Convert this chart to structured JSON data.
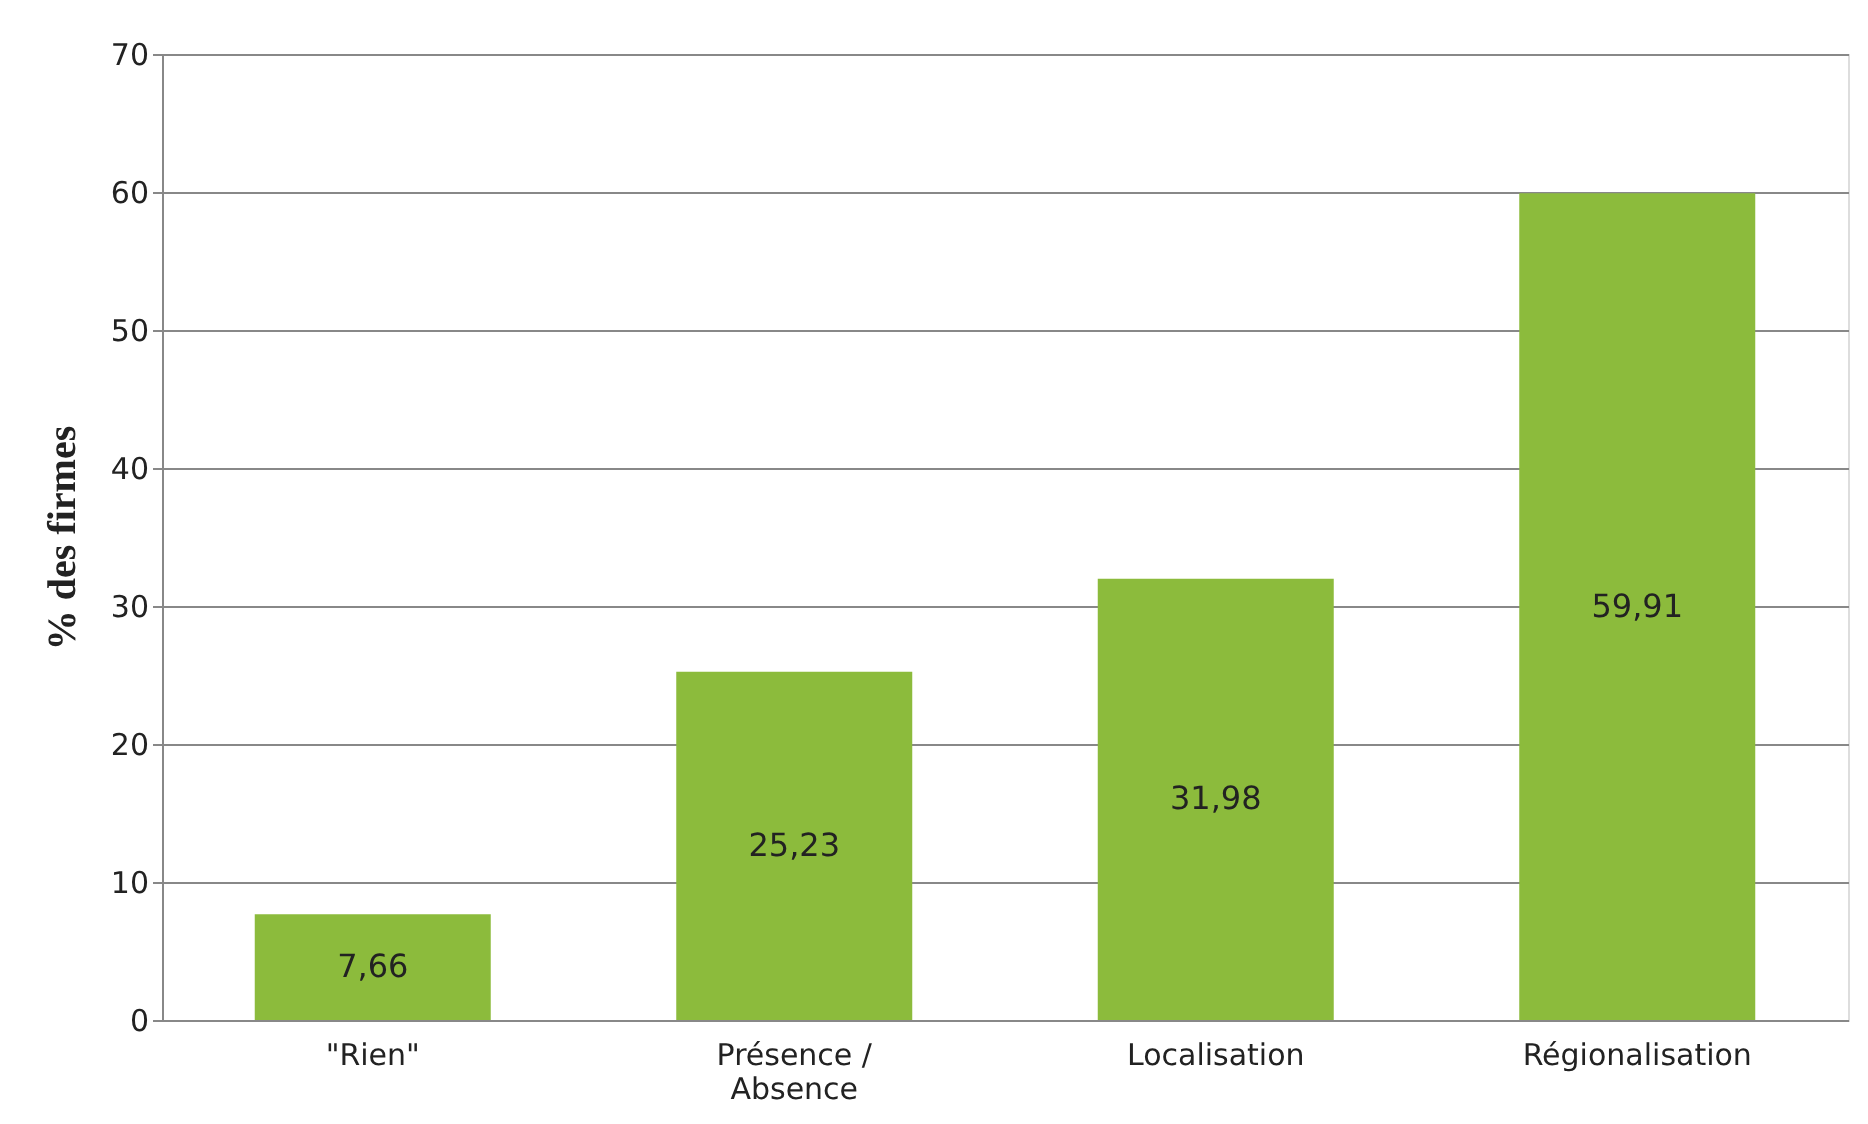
{
  "chart_data": {
    "type": "bar",
    "ylabel": "% des firmes",
    "categories": [
      "\"Rien\"",
      "Présence / Absence",
      "Localisation",
      "Régionalisation"
    ],
    "values": [
      7.66,
      25.23,
      31.98,
      59.91
    ],
    "value_labels": [
      "7,66",
      "25,23",
      "31,98",
      "59,91"
    ],
    "color": "#8cbb3c",
    "ylim": [
      0,
      70
    ],
    "yticks": [
      0,
      10,
      20,
      30,
      40,
      50,
      60,
      70
    ],
    "grid": "y"
  }
}
